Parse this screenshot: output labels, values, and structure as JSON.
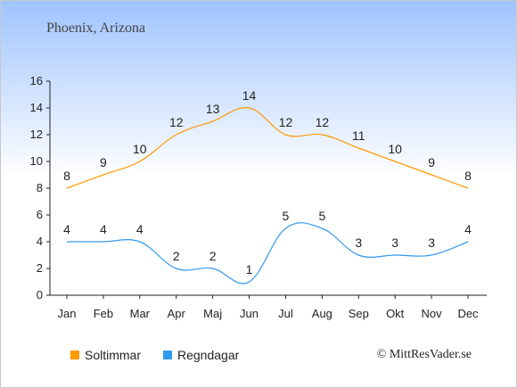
{
  "title": "Phoenix, Arizona",
  "credit": "© MittResVader.se",
  "chart_data": {
    "type": "line",
    "categories": [
      "Jan",
      "Feb",
      "Mar",
      "Apr",
      "Maj",
      "Jun",
      "Jul",
      "Aug",
      "Sep",
      "Okt",
      "Nov",
      "Dec"
    ],
    "series": [
      {
        "name": "Soltimmar",
        "color": "#ff9900",
        "values": [
          8,
          9,
          10,
          12,
          13,
          14,
          12,
          12,
          11,
          10,
          9,
          8
        ]
      },
      {
        "name": "Regndagar",
        "color": "#3399ee",
        "values": [
          4,
          4,
          4,
          2,
          2,
          1,
          5,
          5,
          3,
          3,
          3,
          4
        ]
      }
    ],
    "ylim": [
      0,
      16
    ],
    "yticks": [
      0,
      2,
      4,
      6,
      8,
      10,
      12,
      14,
      16
    ],
    "grid": false,
    "legend": "bottom-left"
  }
}
